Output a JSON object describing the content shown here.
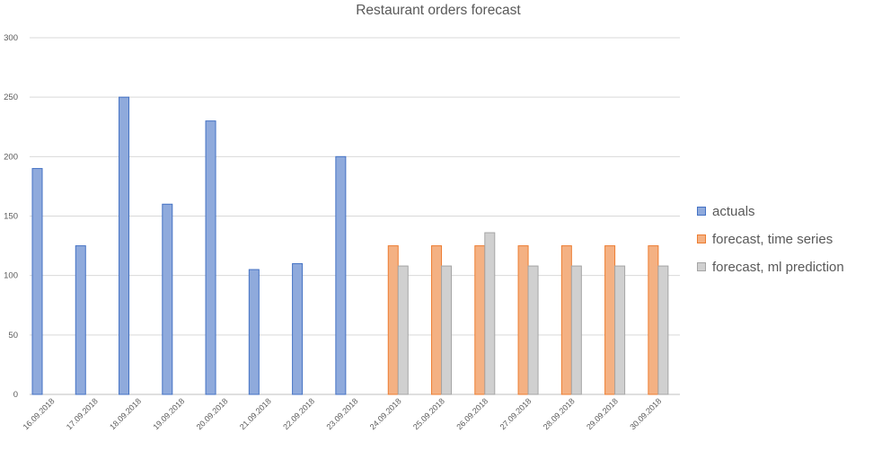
{
  "chart_data": {
    "type": "bar",
    "title": "Restaurant orders forecast",
    "xlabel": "",
    "ylabel": "",
    "ylim": [
      0,
      300
    ],
    "yticks": [
      0,
      50,
      100,
      150,
      200,
      250,
      300
    ],
    "grid": true,
    "legend_position": "right",
    "categories": [
      "16.09.2018",
      "17.09.2018",
      "18.09.2018",
      "19.09.2018",
      "20.09.2018",
      "21.09.2018",
      "22.09.2018",
      "23.09.2018",
      "24.09.2018",
      "25.09.2018",
      "26.09.2018",
      "27.09.2018",
      "28.09.2018",
      "29.09.2018",
      "30.09.2018"
    ],
    "series": [
      {
        "name": "actuals",
        "color": "#8faadc",
        "border": "#4472c4",
        "values": [
          190,
          125,
          250,
          160,
          230,
          105,
          110,
          200,
          null,
          null,
          null,
          null,
          null,
          null,
          null
        ]
      },
      {
        "name": "forecast, time series",
        "color": "#f4b183",
        "border": "#ed7d31",
        "values": [
          null,
          null,
          null,
          null,
          null,
          null,
          null,
          null,
          125,
          125,
          125,
          125,
          125,
          125,
          125
        ]
      },
      {
        "name": "forecast, ml prediction",
        "color": "#d0d0d0",
        "border": "#a5a5a5",
        "values": [
          null,
          null,
          null,
          null,
          null,
          null,
          null,
          null,
          108,
          108,
          136,
          108,
          108,
          108,
          108
        ]
      }
    ]
  }
}
